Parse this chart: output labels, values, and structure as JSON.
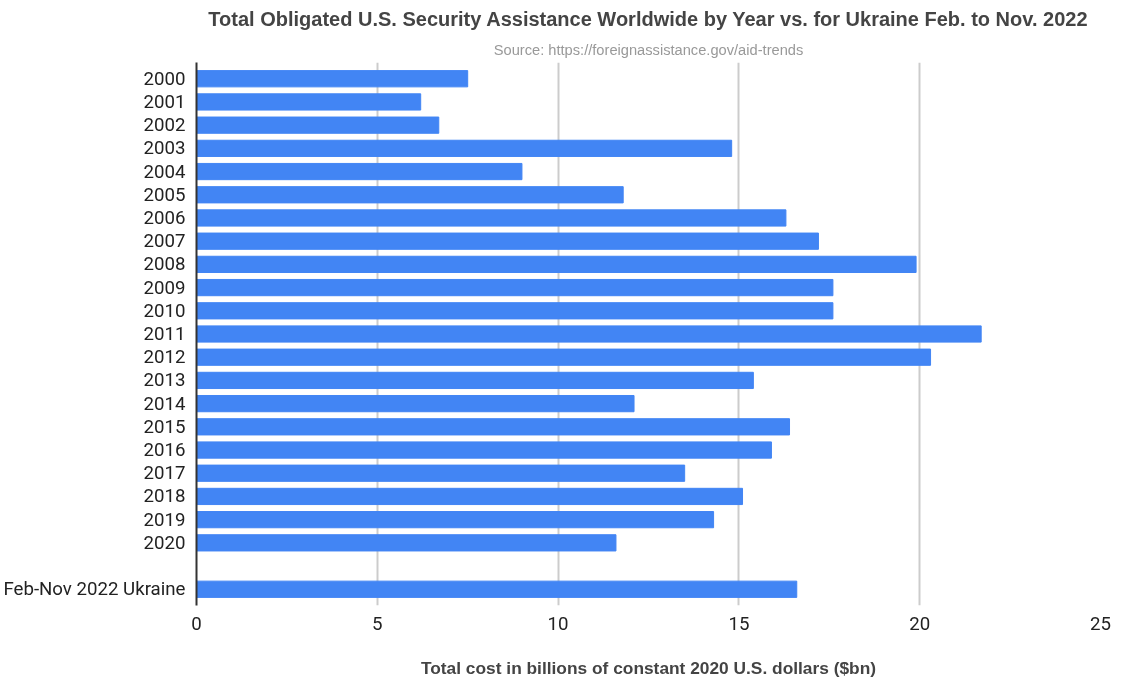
{
  "chart_data": {
    "type": "bar",
    "orientation": "horizontal",
    "title": "Total Obligated U.S. Security Assistance Worldwide by Year vs. for Ukraine Feb. to Nov. 2022",
    "subtitle": "Source: https://foreignassistance.gov/aid-trends",
    "xlabel": "Total cost in billions of constant 2020 U.S. dollars ($bn)",
    "categories": [
      "2000",
      "2001",
      "2002",
      "2003",
      "2004",
      "2005",
      "2006",
      "2007",
      "2008",
      "2009",
      "2010",
      "2011",
      "2012",
      "2013",
      "2014",
      "2015",
      "2016",
      "2017",
      "2018",
      "2019",
      "2020",
      null,
      "Feb-Nov 2022 Ukraine"
    ],
    "values": [
      7.5,
      6.2,
      6.7,
      14.8,
      9.0,
      11.8,
      16.3,
      17.2,
      19.9,
      17.6,
      17.6,
      21.7,
      20.3,
      15.4,
      12.1,
      16.4,
      15.9,
      13.5,
      15.1,
      14.3,
      11.6,
      null,
      16.6
    ],
    "color": "#4285f4",
    "xlim": [
      0,
      25
    ],
    "xticks": [
      0,
      5,
      10,
      15,
      20,
      25
    ],
    "grid": "x"
  }
}
